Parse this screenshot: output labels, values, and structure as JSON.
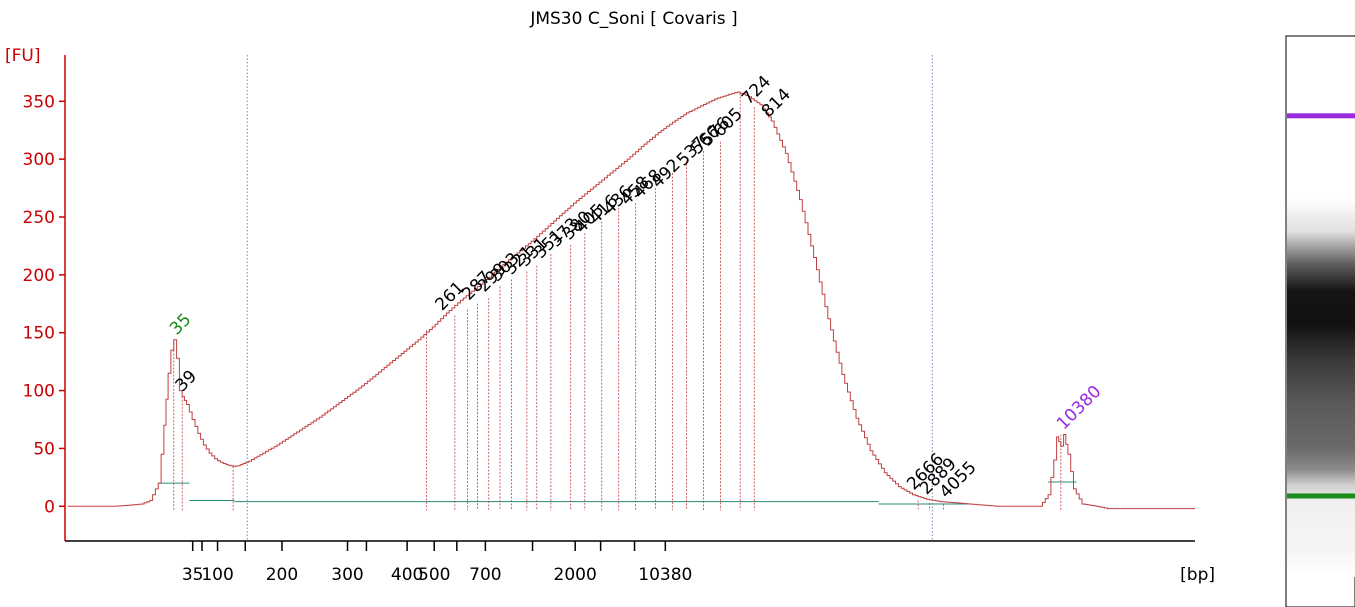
{
  "colors": {
    "axis": "#cc0000",
    "trace": "#c04040",
    "baseline": "#2a8a7a",
    "marker_green": "#1a8a1a",
    "marker_purple": "#9a2ae0"
  },
  "chart_data": {
    "type": "line",
    "title": "JMS30 C_Soni  [ Covaris ]",
    "ylabel": "[FU]",
    "xlabel": "[bp]",
    "ylim": [
      -30,
      390
    ],
    "yticks": [
      0,
      50,
      100,
      150,
      200,
      250,
      300,
      350
    ],
    "xticks": [
      {
        "label": "35",
        "t": 45.2
      },
      {
        "label": "",
        "t": 48.5
      },
      {
        "label": "100",
        "t": 54.0
      },
      {
        "label": "",
        "t": 63.8
      },
      {
        "label": "200",
        "t": 76.8
      },
      {
        "label": "300",
        "t": 100.0
      },
      {
        "label": "",
        "t": 106.7
      },
      {
        "label": "400",
        "t": 121.1
      },
      {
        "label": "500",
        "t": 130.7
      },
      {
        "label": "",
        "t": 138.7
      },
      {
        "label": "700",
        "t": 148.8
      },
      {
        "label": "",
        "t": 165.5
      },
      {
        "label": "2000",
        "t": 180.6
      },
      {
        "label": "",
        "t": 189.6
      },
      {
        "label": "",
        "t": 201.6
      },
      {
        "label": "10380",
        "t": 212.5
      }
    ],
    "series": [
      {
        "points": [
          [
            1,
            0
          ],
          [
            17,
            0
          ],
          [
            20,
            0.5
          ],
          [
            23,
            1
          ],
          [
            27,
            2
          ],
          [
            30,
            5
          ],
          [
            33,
            20
          ],
          [
            35,
            70
          ],
          [
            36.5,
            115
          ],
          [
            37.5,
            135
          ],
          [
            38.5,
            144
          ],
          [
            39.5,
            128
          ],
          [
            40.5,
            100
          ],
          [
            41.5,
            95
          ],
          [
            43,
            88
          ],
          [
            45,
            75
          ],
          [
            47,
            63
          ],
          [
            49,
            53
          ],
          [
            51,
            46
          ],
          [
            53,
            41
          ],
          [
            55,
            38
          ],
          [
            57,
            36
          ],
          [
            59.5,
            34.5
          ],
          [
            61,
            35
          ],
          [
            63,
            37
          ],
          [
            65,
            39
          ],
          [
            70,
            46
          ],
          [
            75,
            53
          ],
          [
            80,
            61
          ],
          [
            85,
            69
          ],
          [
            90,
            77
          ],
          [
            95,
            86
          ],
          [
            100,
            95
          ],
          [
            105,
            104
          ],
          [
            110,
            114
          ],
          [
            115,
            124
          ],
          [
            120,
            134
          ],
          [
            125,
            144
          ],
          [
            130,
            155
          ],
          [
            135,
            167
          ],
          [
            140,
            178
          ],
          [
            145,
            188
          ],
          [
            150,
            198
          ],
          [
            155,
            209
          ],
          [
            160,
            219
          ],
          [
            165,
            229
          ],
          [
            170,
            240
          ],
          [
            175,
            251
          ],
          [
            180,
            262
          ],
          [
            185,
            272
          ],
          [
            190,
            282
          ],
          [
            195,
            292
          ],
          [
            200,
            302
          ],
          [
            205,
            313
          ],
          [
            210,
            323
          ],
          [
            215,
            332
          ],
          [
            220,
            340
          ],
          [
            225,
            346
          ],
          [
            230,
            352
          ],
          [
            235,
            356
          ],
          [
            238,
            358
          ],
          [
            242,
            354
          ],
          [
            246,
            347
          ],
          [
            250,
            333
          ],
          [
            255,
            305
          ],
          [
            260,
            265
          ],
          [
            265,
            215
          ],
          [
            270,
            162
          ],
          [
            275,
            114
          ],
          [
            280,
            76
          ],
          [
            285,
            48
          ],
          [
            290,
            29
          ],
          [
            295,
            17
          ],
          [
            300,
            10
          ],
          [
            305,
            6
          ],
          [
            310,
            4
          ],
          [
            315,
            3
          ],
          [
            320,
            2
          ],
          [
            325,
            1
          ],
          [
            330,
            0
          ],
          [
            345,
            0
          ],
          [
            348,
            10
          ],
          [
            350,
            40
          ],
          [
            351,
            60
          ],
          [
            352.5,
            52
          ],
          [
            353.5,
            62
          ],
          [
            355,
            45
          ],
          [
            357,
            15
          ],
          [
            360,
            2
          ],
          [
            365,
            0
          ],
          [
            369,
            -2
          ],
          [
            400,
            -2
          ]
        ]
      }
    ],
    "peak_labels": [
      {
        "text": "35",
        "x": 39.5,
        "y": 144,
        "color": "green"
      },
      {
        "text": "39",
        "x": 41.5,
        "y": 95
      },
      {
        "text": "261",
        "x": 133.5,
        "y": 165
      },
      {
        "text": "287",
        "x": 143,
        "y": 174
      },
      {
        "text": "299",
        "x": 148.5,
        "y": 181
      },
      {
        "text": "303",
        "x": 153,
        "y": 190
      },
      {
        "text": "321",
        "x": 158,
        "y": 196
      },
      {
        "text": "331",
        "x": 163,
        "y": 203
      },
      {
        "text": "351",
        "x": 168.5,
        "y": 210
      },
      {
        "text": "373",
        "x": 174,
        "y": 220
      },
      {
        "text": "380",
        "x": 178.5,
        "y": 226
      },
      {
        "text": "405",
        "x": 183,
        "y": 232
      },
      {
        "text": "416",
        "x": 188,
        "y": 240
      },
      {
        "text": "436",
        "x": 193,
        "y": 248
      },
      {
        "text": "458",
        "x": 199,
        "y": 256
      },
      {
        "text": "468",
        "x": 203.5,
        "y": 262
      },
      {
        "text": "492",
        "x": 210,
        "y": 271
      },
      {
        "text": "537",
        "x": 219,
        "y": 290
      },
      {
        "text": "566",
        "x": 224,
        "y": 300
      },
      {
        "text": "576",
        "x": 227.5,
        "y": 307
      },
      {
        "text": "605",
        "x": 232,
        "y": 315
      },
      {
        "text": "724",
        "x": 242,
        "y": 343
      },
      {
        "text": "814",
        "x": 249,
        "y": 332
      },
      {
        "text": "2666",
        "x": 300.5,
        "y": 10
      },
      {
        "text": "2889",
        "x": 305,
        "y": 6
      },
      {
        "text": "4055",
        "x": 312,
        "y": 3
      },
      {
        "text": "10380",
        "x": 353.5,
        "y": 62,
        "color": "purple"
      }
    ],
    "peak_lines": [
      {
        "x": 38.5,
        "y": 144
      },
      {
        "x": 41.5,
        "y": 95
      },
      {
        "x": 59.5,
        "y": 34.5
      },
      {
        "x": 128,
        "y": 152
      },
      {
        "x": 138,
        "y": 165
      },
      {
        "x": 142.5,
        "y": 170
      },
      {
        "x": 146,
        "y": 175
      },
      {
        "x": 150,
        "y": 180
      },
      {
        "x": 154,
        "y": 190
      },
      {
        "x": 158,
        "y": 196
      },
      {
        "x": 163.5,
        "y": 203
      },
      {
        "x": 167,
        "y": 208
      },
      {
        "x": 172,
        "y": 218
      },
      {
        "x": 179,
        "y": 226
      },
      {
        "x": 184,
        "y": 236
      },
      {
        "x": 190,
        "y": 246
      },
      {
        "x": 196,
        "y": 258
      },
      {
        "x": 202,
        "y": 262
      },
      {
        "x": 209,
        "y": 275
      },
      {
        "x": 215,
        "y": 288
      },
      {
        "x": 220,
        "y": 299
      },
      {
        "x": 226,
        "y": 307
      },
      {
        "x": 232,
        "y": 315
      },
      {
        "x": 239,
        "y": 357
      },
      {
        "x": 244,
        "y": 345
      },
      {
        "x": 302,
        "y": 5
      },
      {
        "x": 306,
        "y": 3
      },
      {
        "x": 311,
        "y": 2
      },
      {
        "x": 352.5,
        "y": 62
      }
    ],
    "markers": [
      {
        "x": 64.5
      },
      {
        "x": 307
      }
    ],
    "baselines": [
      {
        "x1": 33,
        "x2": 44,
        "y": 20
      },
      {
        "x1": 44,
        "x2": 60,
        "y": 5
      },
      {
        "x1": 60,
        "x2": 288,
        "y": 4
      },
      {
        "x1": 288,
        "x2": 320,
        "y": 2
      },
      {
        "x1": 348,
        "x2": 358,
        "y": 21
      }
    ]
  },
  "gel": {
    "bands": [
      {
        "name": "upper-marker",
        "color": "#9a2ae0",
        "position": 0.145
      },
      {
        "name": "lower-marker",
        "color": "#1a8a1a",
        "position": 0.849
      }
    ]
  }
}
